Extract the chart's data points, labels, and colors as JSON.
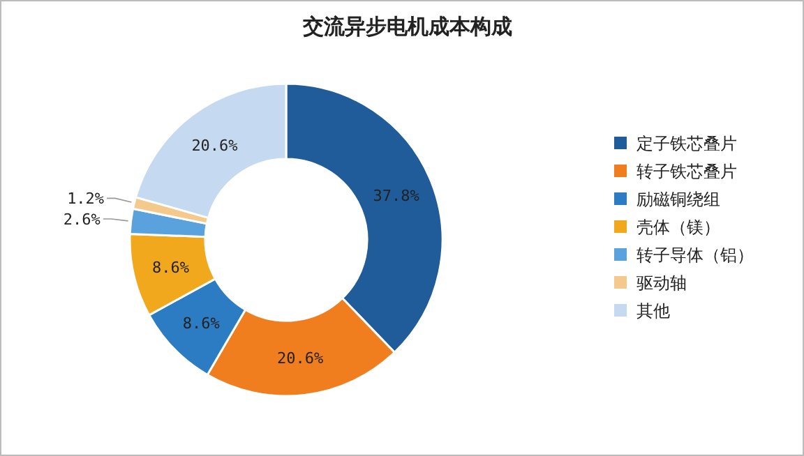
{
  "chart_data": {
    "type": "donut",
    "title": "交流异步电机成本构成",
    "categories": [
      "定子铁芯叠片",
      "转子铁芯叠片",
      "励磁铜绕组",
      "壳体（镁）",
      "转子导体（铝）",
      "驱动轴",
      "其他"
    ],
    "values": [
      37.8,
      20.6,
      8.6,
      8.6,
      2.6,
      1.2,
      20.6
    ],
    "value_labels": [
      "37.8%",
      "20.6%",
      "8.6%",
      "8.6%",
      "2.6%",
      "1.2%",
      "20.6%"
    ],
    "colors": [
      "#1f5c99",
      "#f07d1e",
      "#2b7cc2",
      "#f2a81d",
      "#5aa2dd",
      "#f5c98c",
      "#c5daf0"
    ],
    "legend": "right"
  }
}
